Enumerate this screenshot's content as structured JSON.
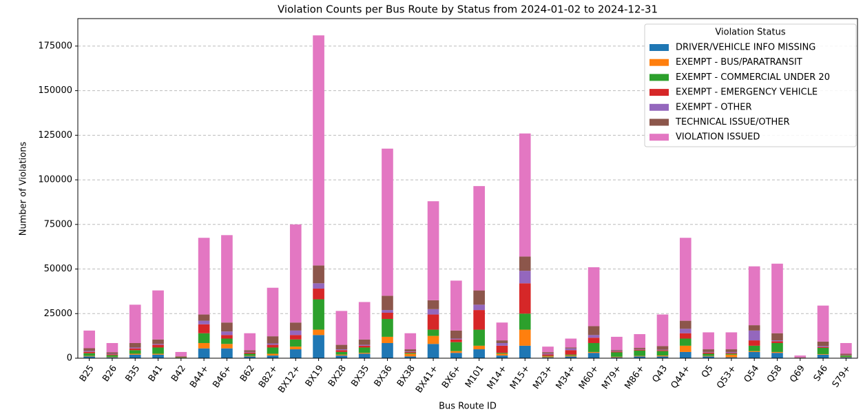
{
  "chart_data": {
    "type": "stacked_bar",
    "title": "Violation Counts per Bus Route by Status from 2024-01-02 to 2024-12-31",
    "x_label": "Bus Route ID",
    "y_label": "Number of Violations",
    "legend_title": "Violation Status",
    "legend_position": "upper right",
    "grid": true,
    "categories": [
      "B25",
      "B26",
      "B35",
      "B41",
      "B42",
      "B44+",
      "B46+",
      "B62",
      "B82+",
      "BX12+",
      "BX19",
      "BX28",
      "BX35",
      "BX36",
      "BX38",
      "BX41+",
      "BX6+",
      "M101",
      "M14+",
      "M15+",
      "M23+",
      "M34+",
      "M60+",
      "M79+",
      "M86+",
      "Q43",
      "Q44+",
      "Q5",
      "Q53+",
      "Q54",
      "Q58",
      "Q69",
      "S46",
      "S79+"
    ],
    "ylim": [
      0,
      190400
    ],
    "yticks": [
      0,
      25000,
      50000,
      75000,
      100000,
      125000,
      150000,
      175000
    ],
    "series": [
      {
        "name": "DRIVER/VEHICLE INFO MISSING",
        "color": "#1f77b4",
        "values": [
          1000,
          500,
          2000,
          2000,
          200,
          5500,
          5500,
          1000,
          1500,
          5000,
          13000,
          1500,
          2500,
          8500,
          1000,
          8000,
          3000,
          5000,
          1500,
          7000,
          500,
          1000,
          3000,
          500,
          1000,
          1000,
          3500,
          1000,
          500,
          3500,
          3000,
          100,
          2000,
          500
        ]
      },
      {
        "name": "EXEMPT - BUS/PARATRANSIT",
        "color": "#ff7f0e",
        "values": [
          300,
          200,
          500,
          500,
          50,
          3000,
          2500,
          300,
          1000,
          1500,
          3000,
          500,
          500,
          3500,
          1500,
          4500,
          1000,
          2000,
          1000,
          9000,
          500,
          500,
          500,
          300,
          300,
          500,
          3500,
          300,
          1500,
          500,
          500,
          50,
          300,
          200
        ]
      },
      {
        "name": "EXEMPT - COMMERCIAL UNDER 20",
        "color": "#2ca02c",
        "values": [
          1500,
          1000,
          2000,
          3500,
          300,
          5500,
          3000,
          1200,
          3500,
          4000,
          17000,
          1500,
          3000,
          10000,
          500,
          3500,
          5000,
          9000,
          500,
          9000,
          300,
          500,
          5000,
          2500,
          3000,
          2500,
          4000,
          1200,
          500,
          3000,
          5000,
          100,
          3500,
          800
        ]
      },
      {
        "name": "EXEMPT - EMERGENCY VEHICLE",
        "color": "#d62728",
        "values": [
          800,
          500,
          1000,
          1500,
          200,
          5000,
          2000,
          700,
          1500,
          2500,
          6000,
          1000,
          1000,
          3500,
          500,
          8500,
          1500,
          11000,
          4000,
          17000,
          800,
          2500,
          3000,
          500,
          500,
          500,
          3000,
          700,
          500,
          3000,
          1000,
          100,
          500,
          200
        ]
      },
      {
        "name": "EXEMPT - OTHER",
        "color": "#9467bd",
        "values": [
          500,
          300,
          500,
          500,
          50,
          2000,
          2000,
          300,
          800,
          2500,
          3000,
          500,
          500,
          1500,
          300,
          3000,
          500,
          3000,
          1500,
          7000,
          500,
          1000,
          1500,
          300,
          300,
          300,
          2500,
          300,
          500,
          5500,
          500,
          50,
          500,
          200
        ]
      },
      {
        "name": "TECHNICAL ISSUE/OTHER",
        "color": "#8c564b",
        "values": [
          1500,
          800,
          2500,
          2500,
          300,
          3500,
          5000,
          1000,
          4000,
          4500,
          10000,
          2500,
          3000,
          8000,
          1200,
          5000,
          4500,
          8000,
          1500,
          8000,
          800,
          500,
          5000,
          500,
          700,
          2000,
          4500,
          1500,
          1500,
          3000,
          4000,
          100,
          2500,
          600
        ]
      },
      {
        "name": "VIOLATION ISSUED",
        "color": "#e377c2",
        "values": [
          9900,
          5200,
          21500,
          27500,
          2400,
          43000,
          49000,
          9500,
          27200,
          55000,
          129000,
          19000,
          21000,
          82500,
          9000,
          55500,
          28000,
          58500,
          10000,
          69000,
          3100,
          5000,
          33000,
          7400,
          7700,
          17700,
          46500,
          9500,
          9500,
          33000,
          39000,
          1000,
          20200,
          6000
        ]
      }
    ]
  }
}
